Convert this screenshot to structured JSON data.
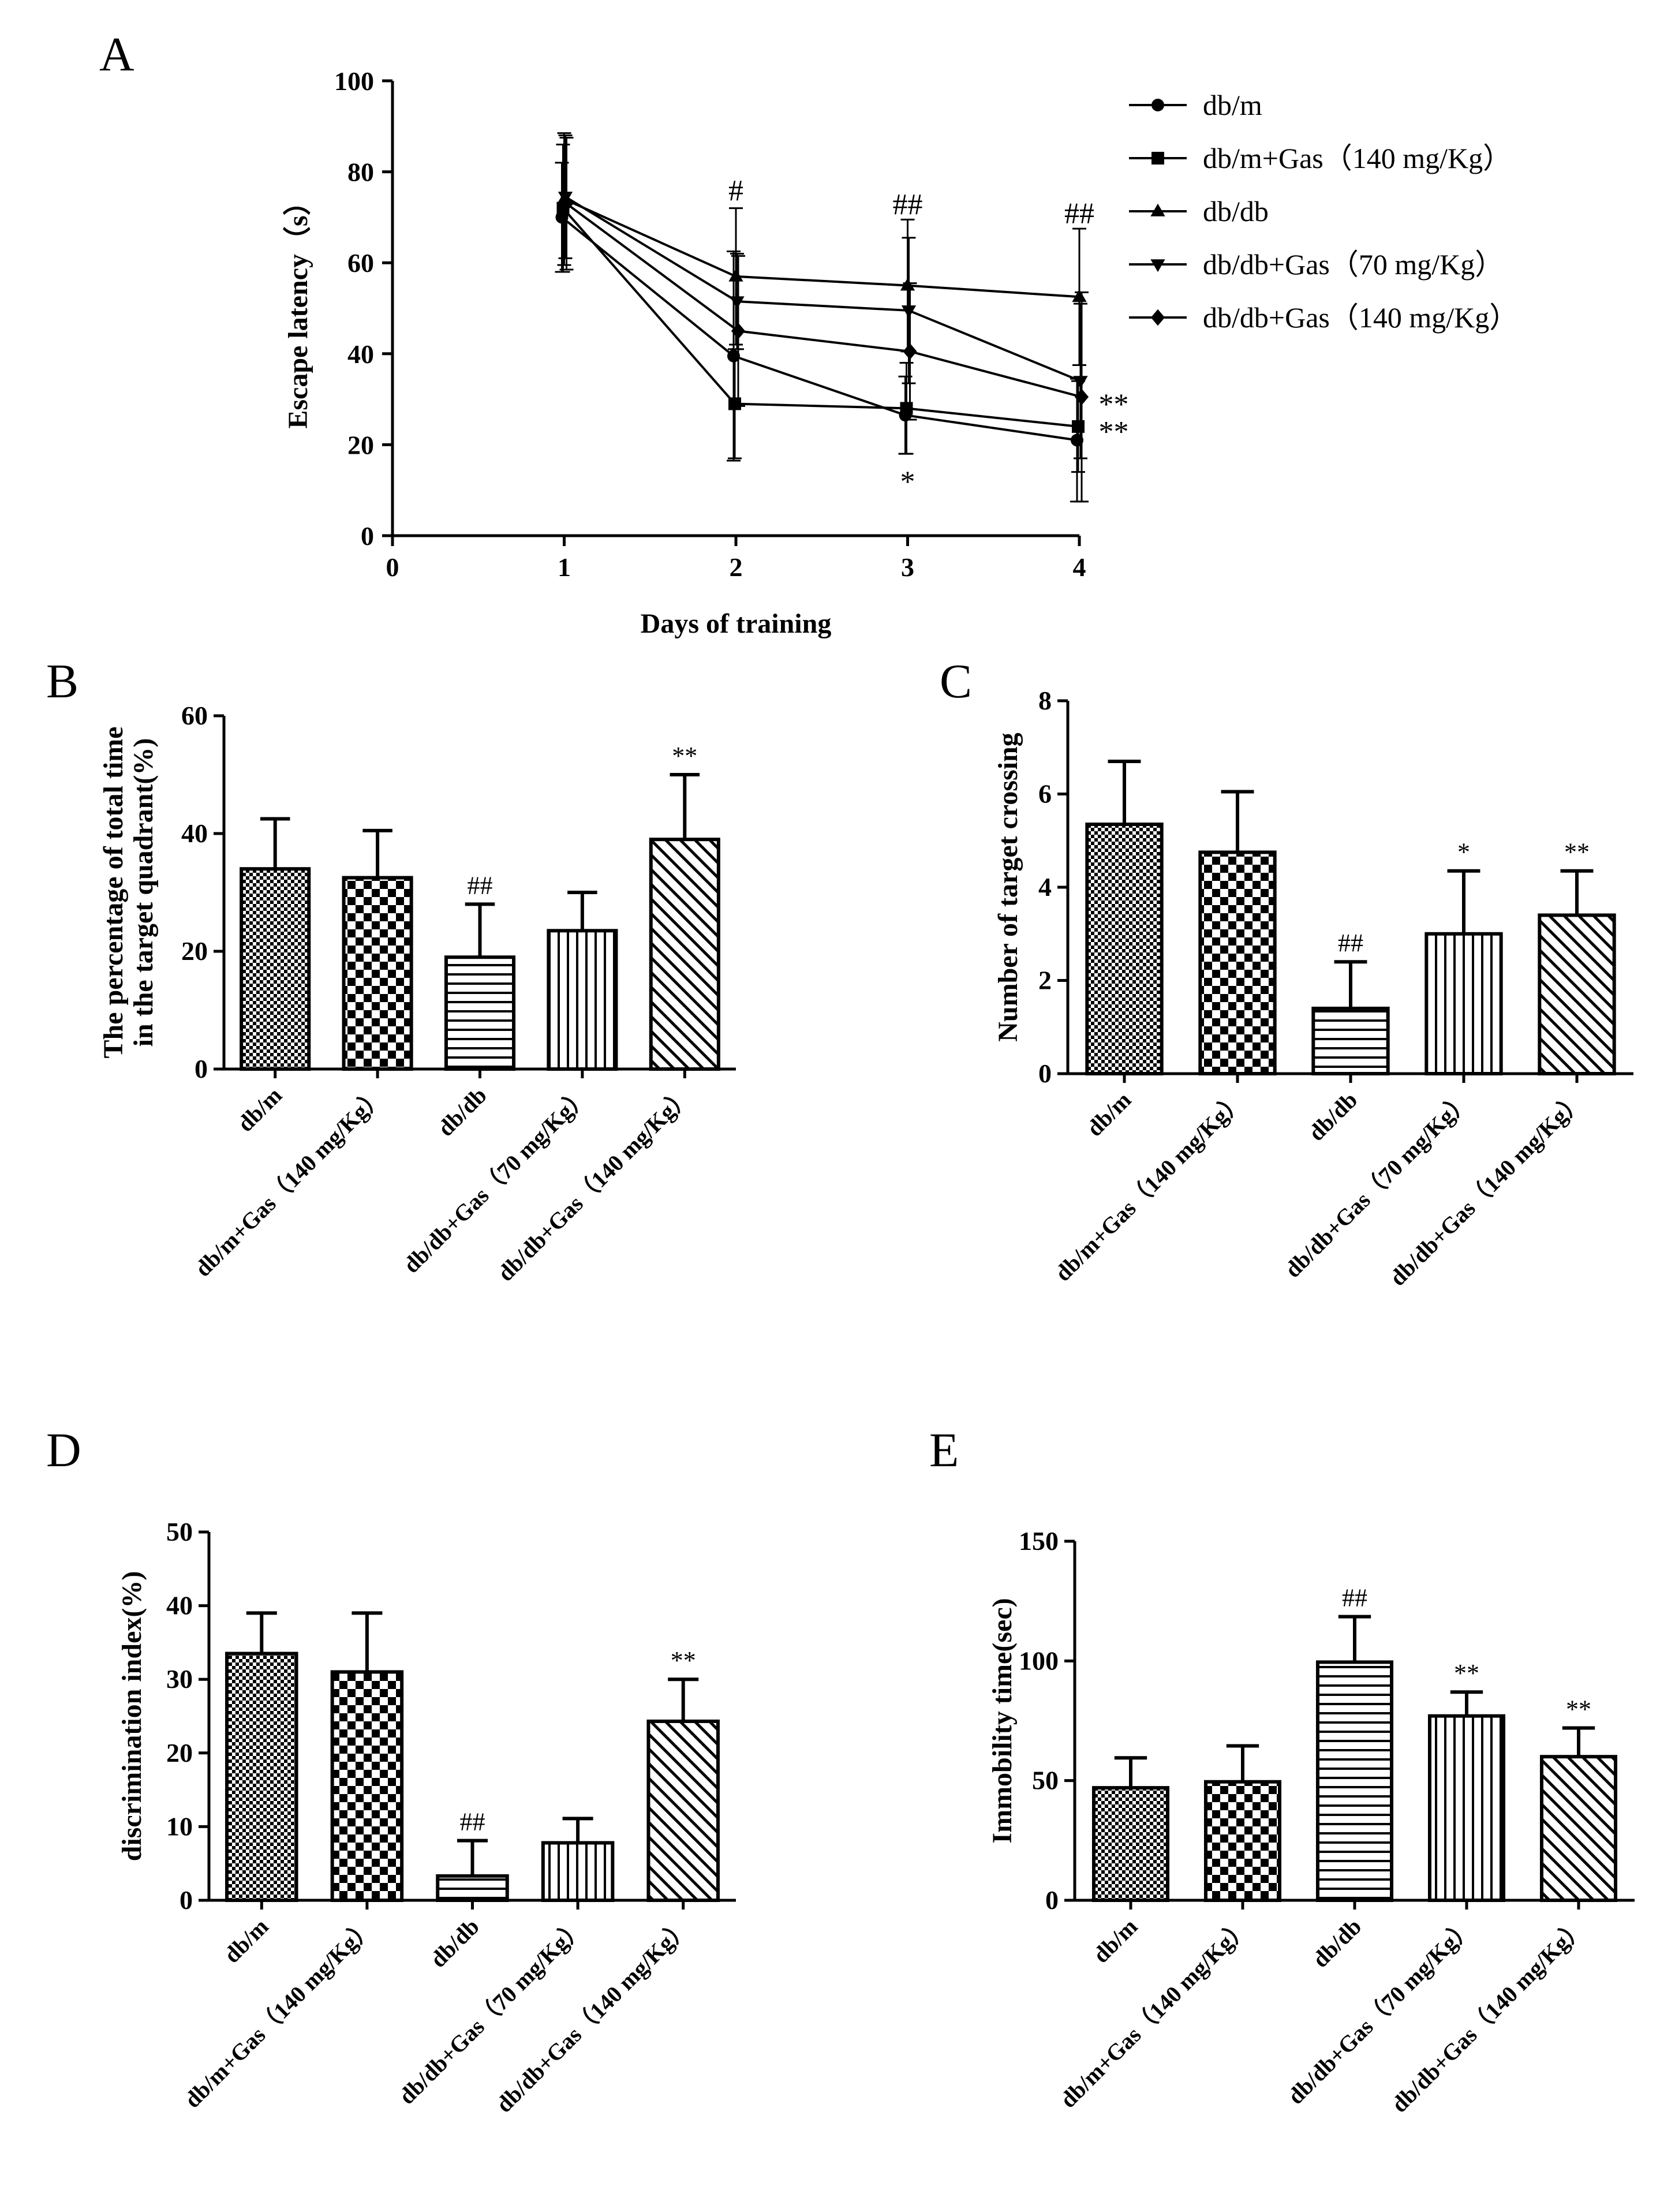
{
  "chart_data": [
    {
      "panel": "A",
      "type": "line",
      "xlabel": "Days of training",
      "ylabel": "Escape latency（s）",
      "xlim": [
        0,
        4
      ],
      "ylim": [
        0,
        100
      ],
      "xticks": [
        "0",
        "1",
        "2",
        "3",
        "4"
      ],
      "yticks": [
        "0",
        "20",
        "40",
        "60",
        "80",
        "100"
      ],
      "legend_position": "top-right",
      "x": [
        1,
        2,
        3,
        4
      ],
      "series": [
        {
          "name": "db/m",
          "marker": "circle",
          "values": [
            70,
            39.5,
            26.5,
            21
          ],
          "errors": [
            12,
            23,
            8.5,
            13.5
          ]
        },
        {
          "name": "db/m+Gas（140 mg/Kg）",
          "marker": "square",
          "values": [
            72,
            29,
            28,
            24
          ],
          "errors": [
            14,
            12,
            10,
            10
          ]
        },
        {
          "name": "db/db",
          "marker": "triangle-up",
          "values": [
            74,
            57,
            55,
            52.5
          ],
          "errors": [
            14.5,
            15,
            14.5,
            15
          ]
        },
        {
          "name": "db/db+Gas（70 mg/Kg）",
          "marker": "triangle-down",
          "values": [
            74.5,
            51.5,
            49.5,
            34
          ],
          "errors": [
            13.5,
            10.5,
            16,
            17
          ]
        },
        {
          "name": "db/db+Gas（140 mg/Kg）",
          "marker": "diamond",
          "values": [
            73,
            45,
            40.5,
            30.5
          ],
          "errors": [
            14.5,
            16.5,
            15,
            23
          ]
        }
      ],
      "annotations": [
        {
          "text": "#",
          "x": 2,
          "y": 76
        },
        {
          "text": "##",
          "x": 3,
          "y": 73
        },
        {
          "text": "##",
          "x": 4,
          "y": 71
        },
        {
          "text": "*",
          "x": 3,
          "y": 12
        },
        {
          "text": "**",
          "x": 4.2,
          "y": 29
        },
        {
          "text": "**",
          "x": 4.2,
          "y": 23
        }
      ]
    },
    {
      "panel": "B",
      "type": "bar",
      "ylabel": "The percentage of total time in the target quadrant(%)",
      "ylabel_lines": [
        "The percentage of total time",
        "in the target quadrant(%)"
      ],
      "ylim": [
        0,
        60
      ],
      "yticks": [
        "0",
        "20",
        "40",
        "60"
      ],
      "categories": [
        "db/m",
        "db/m+Gas（140 mg/Kg）",
        "db/db",
        "db/db+Gas（70 mg/Kg）",
        "db/db+Gas（140 mg/Kg）"
      ],
      "patterns": [
        "dots",
        "checker",
        "hlines",
        "vlines",
        "diag"
      ],
      "values": [
        34,
        32.5,
        19,
        23.5,
        39
      ],
      "errors": [
        8.5,
        8,
        9,
        6.5,
        11
      ],
      "marks": [
        "",
        "",
        "##",
        "",
        "**"
      ]
    },
    {
      "panel": "C",
      "type": "bar",
      "ylabel": "Number of target crossing",
      "ylim": [
        0,
        8
      ],
      "yticks": [
        "0",
        "2",
        "4",
        "6",
        "8"
      ],
      "categories": [
        "db/m",
        "db/m+Gas（140 mg/Kg）",
        "db/db",
        "db/db+Gas（70 mg/Kg）",
        "db/db+Gas（140 mg/Kg）"
      ],
      "patterns": [
        "dots",
        "checker",
        "hlines",
        "vlines",
        "diag"
      ],
      "values": [
        5.35,
        4.75,
        1.4,
        3.0,
        3.4
      ],
      "errors": [
        1.35,
        1.3,
        1.0,
        1.35,
        0.95
      ],
      "marks": [
        "",
        "",
        "##",
        "*",
        "**"
      ]
    },
    {
      "panel": "D",
      "type": "bar",
      "ylabel": "discrimination index(%)",
      "ylim": [
        0,
        50
      ],
      "yticks": [
        "0",
        "10",
        "20",
        "30",
        "40",
        "50"
      ],
      "categories": [
        "db/m",
        "db/m+Gas（140 mg/Kg）",
        "db/db",
        "db/db+Gas（70 mg/Kg）",
        "db/db+Gas（140 mg/Kg）"
      ],
      "patterns": [
        "dots",
        "checker",
        "hlines",
        "vlines",
        "diag"
      ],
      "values": [
        33.5,
        31,
        3.3,
        7.8,
        24.3
      ],
      "errors": [
        5.5,
        8,
        4.8,
        3.3,
        5.7
      ],
      "marks": [
        "",
        "",
        "##",
        "",
        "**"
      ]
    },
    {
      "panel": "E",
      "type": "bar",
      "ylabel": "Immobility time(sec)",
      "ylim": [
        0,
        150
      ],
      "yticks": [
        "0",
        "50",
        "100",
        "150"
      ],
      "categories": [
        "db/m",
        "db/m+Gas（140 mg/Kg）",
        "db/db",
        "db/db+Gas（70 mg/Kg）",
        "db/db+Gas（140 mg/Kg）"
      ],
      "patterns": [
        "dots",
        "checker",
        "hlines",
        "vlines",
        "diag"
      ],
      "values": [
        47,
        49.5,
        99.5,
        77,
        60
      ],
      "errors": [
        12.5,
        15,
        19,
        10,
        12
      ],
      "marks": [
        "",
        "",
        "##",
        "**",
        "**"
      ]
    }
  ]
}
